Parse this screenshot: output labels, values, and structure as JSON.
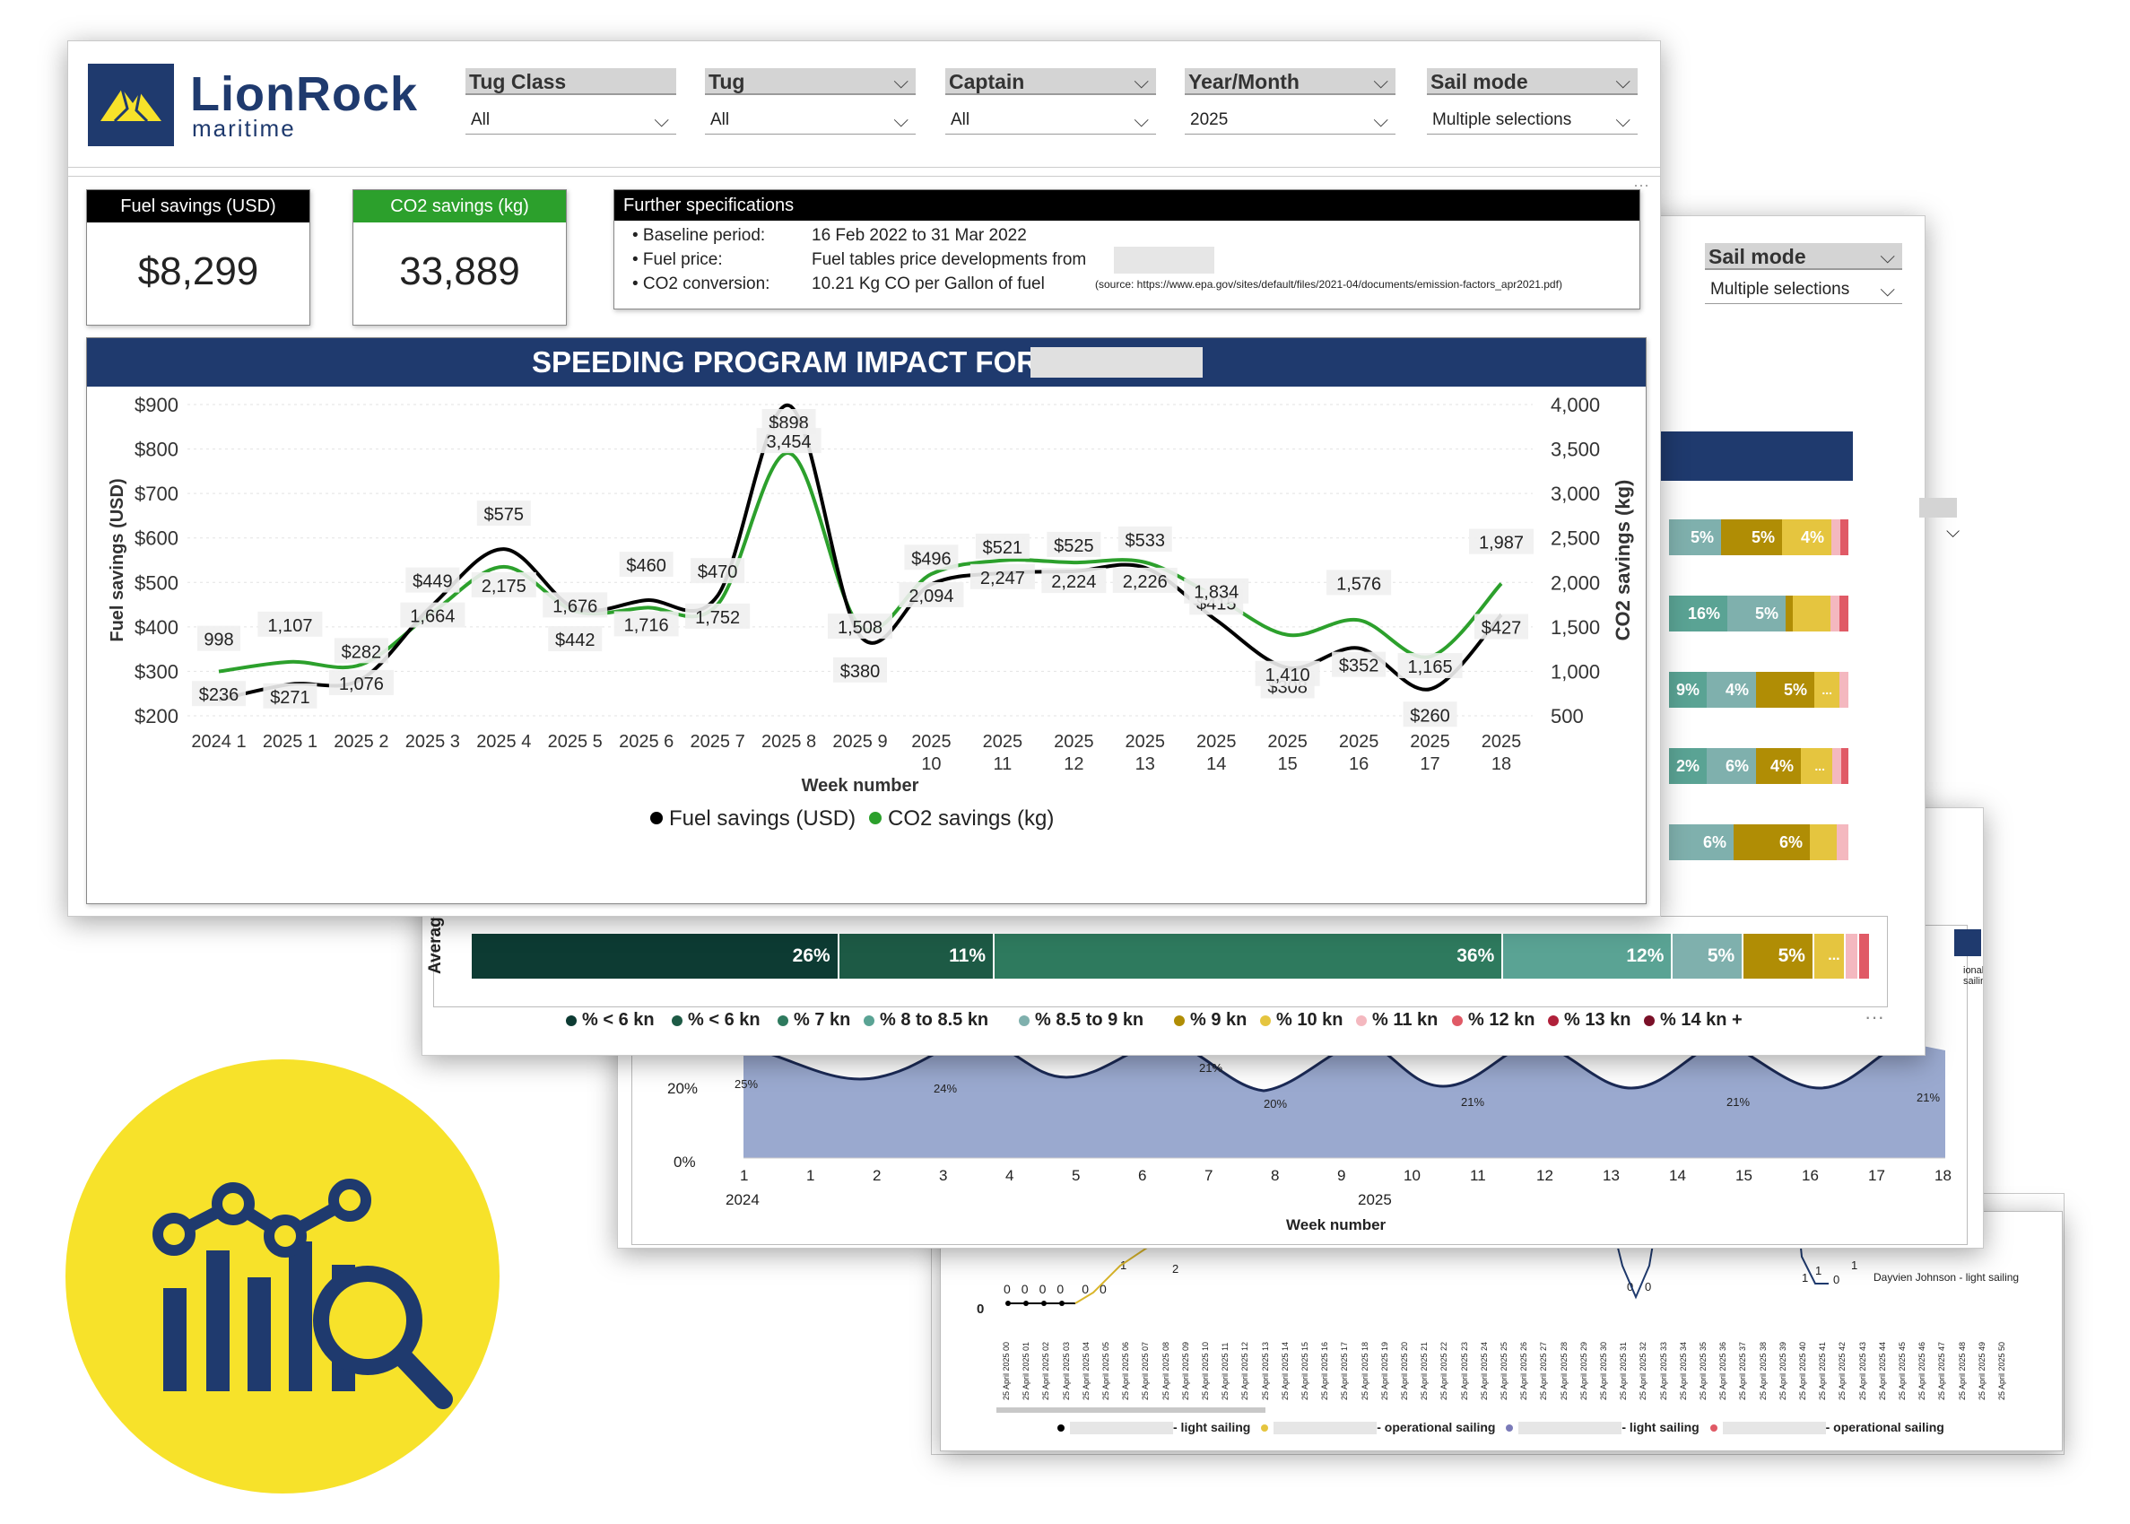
{
  "logo": {
    "name": "LionRock",
    "subtitle": "maritime"
  },
  "filters": [
    {
      "label": "Tug Class",
      "value": "All"
    },
    {
      "label": "Tug",
      "value": "All"
    },
    {
      "label": "Captain",
      "value": "All"
    },
    {
      "label": "Year/Month",
      "value": "2025"
    },
    {
      "label": "Sail mode",
      "value": "Multiple selections"
    }
  ],
  "kpis": {
    "fuel": {
      "label": "Fuel savings (USD)",
      "value": "$8,299",
      "color": "#000000"
    },
    "co2": {
      "label": "CO2 savings (kg)",
      "value": "33,889",
      "color": "#2ca02c"
    }
  },
  "specs": {
    "title": "Further specifications",
    "baseline_label": "• Baseline period:",
    "baseline_value": "16 Feb 2022 to 31 Mar 2022",
    "fuel_label": "• Fuel price:",
    "fuel_value": "Fuel tables price developments from",
    "co2_label": "• CO2 conversion:",
    "co2_value": "10.21 Kg CO per Gallon of fuel",
    "co2_source": "(source: https://www.epa.gov/sites/default/files/2021-04/documents/emission-factors_apr2021.pdf)"
  },
  "chart_data": {
    "type": "line",
    "title": "SPEEDING PROGRAM IMPACT FOR:",
    "xlabel": "Week number",
    "ylabel": "Fuel savings (USD)",
    "y2label": "CO2 savings (kg)",
    "categories": [
      "2024 1",
      "2025 1",
      "2025 2",
      "2025 3",
      "2025 4",
      "2025 5",
      "2025 6",
      "2025 7",
      "2025 8",
      "2025 9",
      "2025 10",
      "2025 11",
      "2025 12",
      "2025 13",
      "2025 14",
      "2025 15",
      "2025 16",
      "2025 17",
      "2025 18"
    ],
    "ylim": [
      200,
      900
    ],
    "y2lim": [
      500,
      4000
    ],
    "yticks": [
      "$200",
      "$300",
      "$400",
      "$500",
      "$600",
      "$700",
      "$800",
      "$900"
    ],
    "y2ticks": [
      "500",
      "1,000",
      "1,500",
      "2,000",
      "2,500",
      "3,000",
      "3,500",
      "4,000"
    ],
    "legend_position": "bottom",
    "series": [
      {
        "name": "Fuel savings (USD)",
        "axis": "left",
        "color": "#000000",
        "values": [
          236,
          271,
          282,
          449,
          575,
          442,
          460,
          470,
          898,
          380,
          496,
          521,
          525,
          533,
          415,
          308,
          352,
          260,
          427
        ],
        "labels": [
          "$236",
          "$271",
          "$282",
          "$449",
          "$575",
          "$442",
          "$460",
          "$470",
          "$898",
          "$380",
          "$496",
          "$521",
          "$525",
          "$533",
          "$415",
          "$308",
          "$352",
          "$260",
          "$427"
        ]
      },
      {
        "name": "CO2 savings (kg)",
        "axis": "right",
        "color": "#2ca02c",
        "values": [
          998,
          1107,
          1076,
          1664,
          2175,
          1676,
          1716,
          1752,
          3454,
          1508,
          2094,
          2247,
          2224,
          2226,
          1834,
          1410,
          1576,
          1165,
          1987
        ],
        "labels": [
          "998",
          "1,107",
          "1,076",
          "1,664",
          "2,175",
          "1,676",
          "1,716",
          "1,752",
          "3,454",
          "1,508",
          "2,094",
          "2,247",
          "2,224",
          "2,226",
          "1,834",
          "1,410",
          "1,576",
          "1,165",
          "1,987"
        ]
      }
    ]
  },
  "back_panel": {
    "sail_mode_label": "Sail mode",
    "sail_mode_value": "Multiple selections",
    "rows": [
      [
        "5%",
        "5%",
        "4%"
      ],
      [
        "16%",
        "5%",
        ""
      ],
      [
        "9%",
        "4%",
        "5%",
        "..."
      ],
      [
        "2%",
        "6%",
        "4%",
        "..."
      ],
      [
        "6%",
        "6%"
      ]
    ],
    "average_label": "Average",
    "average_bar": [
      {
        "label": "26%",
        "pct": 26,
        "color": "#0d3b33"
      },
      {
        "label": "11%",
        "pct": 11,
        "color": "#1d5a45"
      },
      {
        "label": "36%",
        "pct": 36,
        "color": "#2e7a5e"
      },
      {
        "label": "12%",
        "pct": 12,
        "color": "#5aa394"
      },
      {
        "label": "5%",
        "pct": 5,
        "color": "#7fb0ad"
      },
      {
        "label": "5%",
        "pct": 5,
        "color": "#b08d05"
      },
      {
        "label": "...",
        "pct": 2.2,
        "color": "#e5c53f"
      },
      {
        "label": "",
        "pct": 1.0,
        "color": "#f4b8bf"
      },
      {
        "label": "",
        "pct": 0.8,
        "color": "#e05a66"
      }
    ],
    "speed_legend": [
      {
        "label": "% < 6 kn",
        "color": "#0d3b33"
      },
      {
        "label": "% < 6 kn",
        "color": "#1d5a45"
      },
      {
        "label": "% 7 kn",
        "color": "#2e7a5e"
      },
      {
        "label": "% 8 to 8.5 kn",
        "color": "#5aa394"
      },
      {
        "label": "% 8.5 to 9 kn",
        "color": "#7fb0ad"
      },
      {
        "label": "% 9 kn",
        "color": "#b08d05"
      },
      {
        "label": "% 10 kn",
        "color": "#e5c53f"
      },
      {
        "label": "% 11 kn",
        "color": "#f4b8bf"
      },
      {
        "label": "% 12 kn",
        "color": "#e05a66"
      },
      {
        "label": "% 13 kn",
        "color": "#b0203a"
      },
      {
        "label": "% 14 kn +",
        "color": "#7a1028"
      }
    ]
  },
  "area_chart": {
    "yticks": [
      "0%",
      "20%"
    ],
    "point_labels": [
      "25%",
      "24%",
      "21%",
      "20%",
      "21%",
      "21%",
      "21%"
    ],
    "x_labels": [
      "1",
      "1",
      "2",
      "3",
      "4",
      "5",
      "6",
      "7",
      "8",
      "9",
      "10",
      "11",
      "12",
      "13",
      "14",
      "15",
      "16",
      "17",
      "18"
    ],
    "x_group_labels": [
      "2024",
      "2025"
    ],
    "xlabel": "Week number"
  },
  "daily_chart": {
    "y_labels": [
      "0",
      "2"
    ],
    "zeros": [
      "0",
      "0",
      "0",
      "0",
      "0",
      "0"
    ],
    "ones": [
      "1",
      "2",
      "1",
      "1",
      "0",
      "0",
      "1",
      "0"
    ],
    "annotation": "Dayvien Johnson - light sailing",
    "date_labels": [
      "25 April 2025 00",
      "25 April 2025 01",
      "25 April 2025 02",
      "25 April 2025 03",
      "25 April 2025 04",
      "25 April 2025 05",
      "25 April 2025 06",
      "25 April 2025 07",
      "25 April 2025 08",
      "25 April 2025 09",
      "25 April 2025 10",
      "25 April 2025 11",
      "25 April 2025 12",
      "25 April 2025 13",
      "25 April 2025 14",
      "25 April 2025 15",
      "25 April 2025 16",
      "25 April 2025 17",
      "25 April 2025 18",
      "25 April 2025 19",
      "25 April 2025 20",
      "25 April 2025 21",
      "25 April 2025 22",
      "25 April 2025 23",
      "25 April 2025 24",
      "25 April 2025 25",
      "25 April 2025 26",
      "25 April 2025 27",
      "25 April 2025 28",
      "25 April 2025 29",
      "25 April 2025 30",
      "25 April 2025 31",
      "25 April 2025 32",
      "25 April 2025 33",
      "25 April 2025 34",
      "25 April 2025 35",
      "25 April 2025 36",
      "25 April 2025 37",
      "25 April 2025 38",
      "25 April 2025 39",
      "25 April 2025 40",
      "25 April 2025 41",
      "25 April 2025 42",
      "25 April 2025 43",
      "25 April 2025 44",
      "25 April 2025 45",
      "25 April 2025 46",
      "25 April 2025 47",
      "25 April 2025 48",
      "25 April 2025 49",
      "25 April 2025 50"
    ],
    "legend": [
      {
        "text": "- light sailing",
        "color": "#000000"
      },
      {
        "text": "- operational sailing",
        "color": "#e5c53f"
      },
      {
        "text": "- light sailing",
        "color": "#7a7ab8"
      },
      {
        "text": "- operational sailing",
        "color": "#e05a66"
      }
    ],
    "side_note": "ional sailing"
  },
  "colors": {
    "navy": "#1f3a6e",
    "yellow": "#f7e22a",
    "green": "#2ca02c"
  }
}
